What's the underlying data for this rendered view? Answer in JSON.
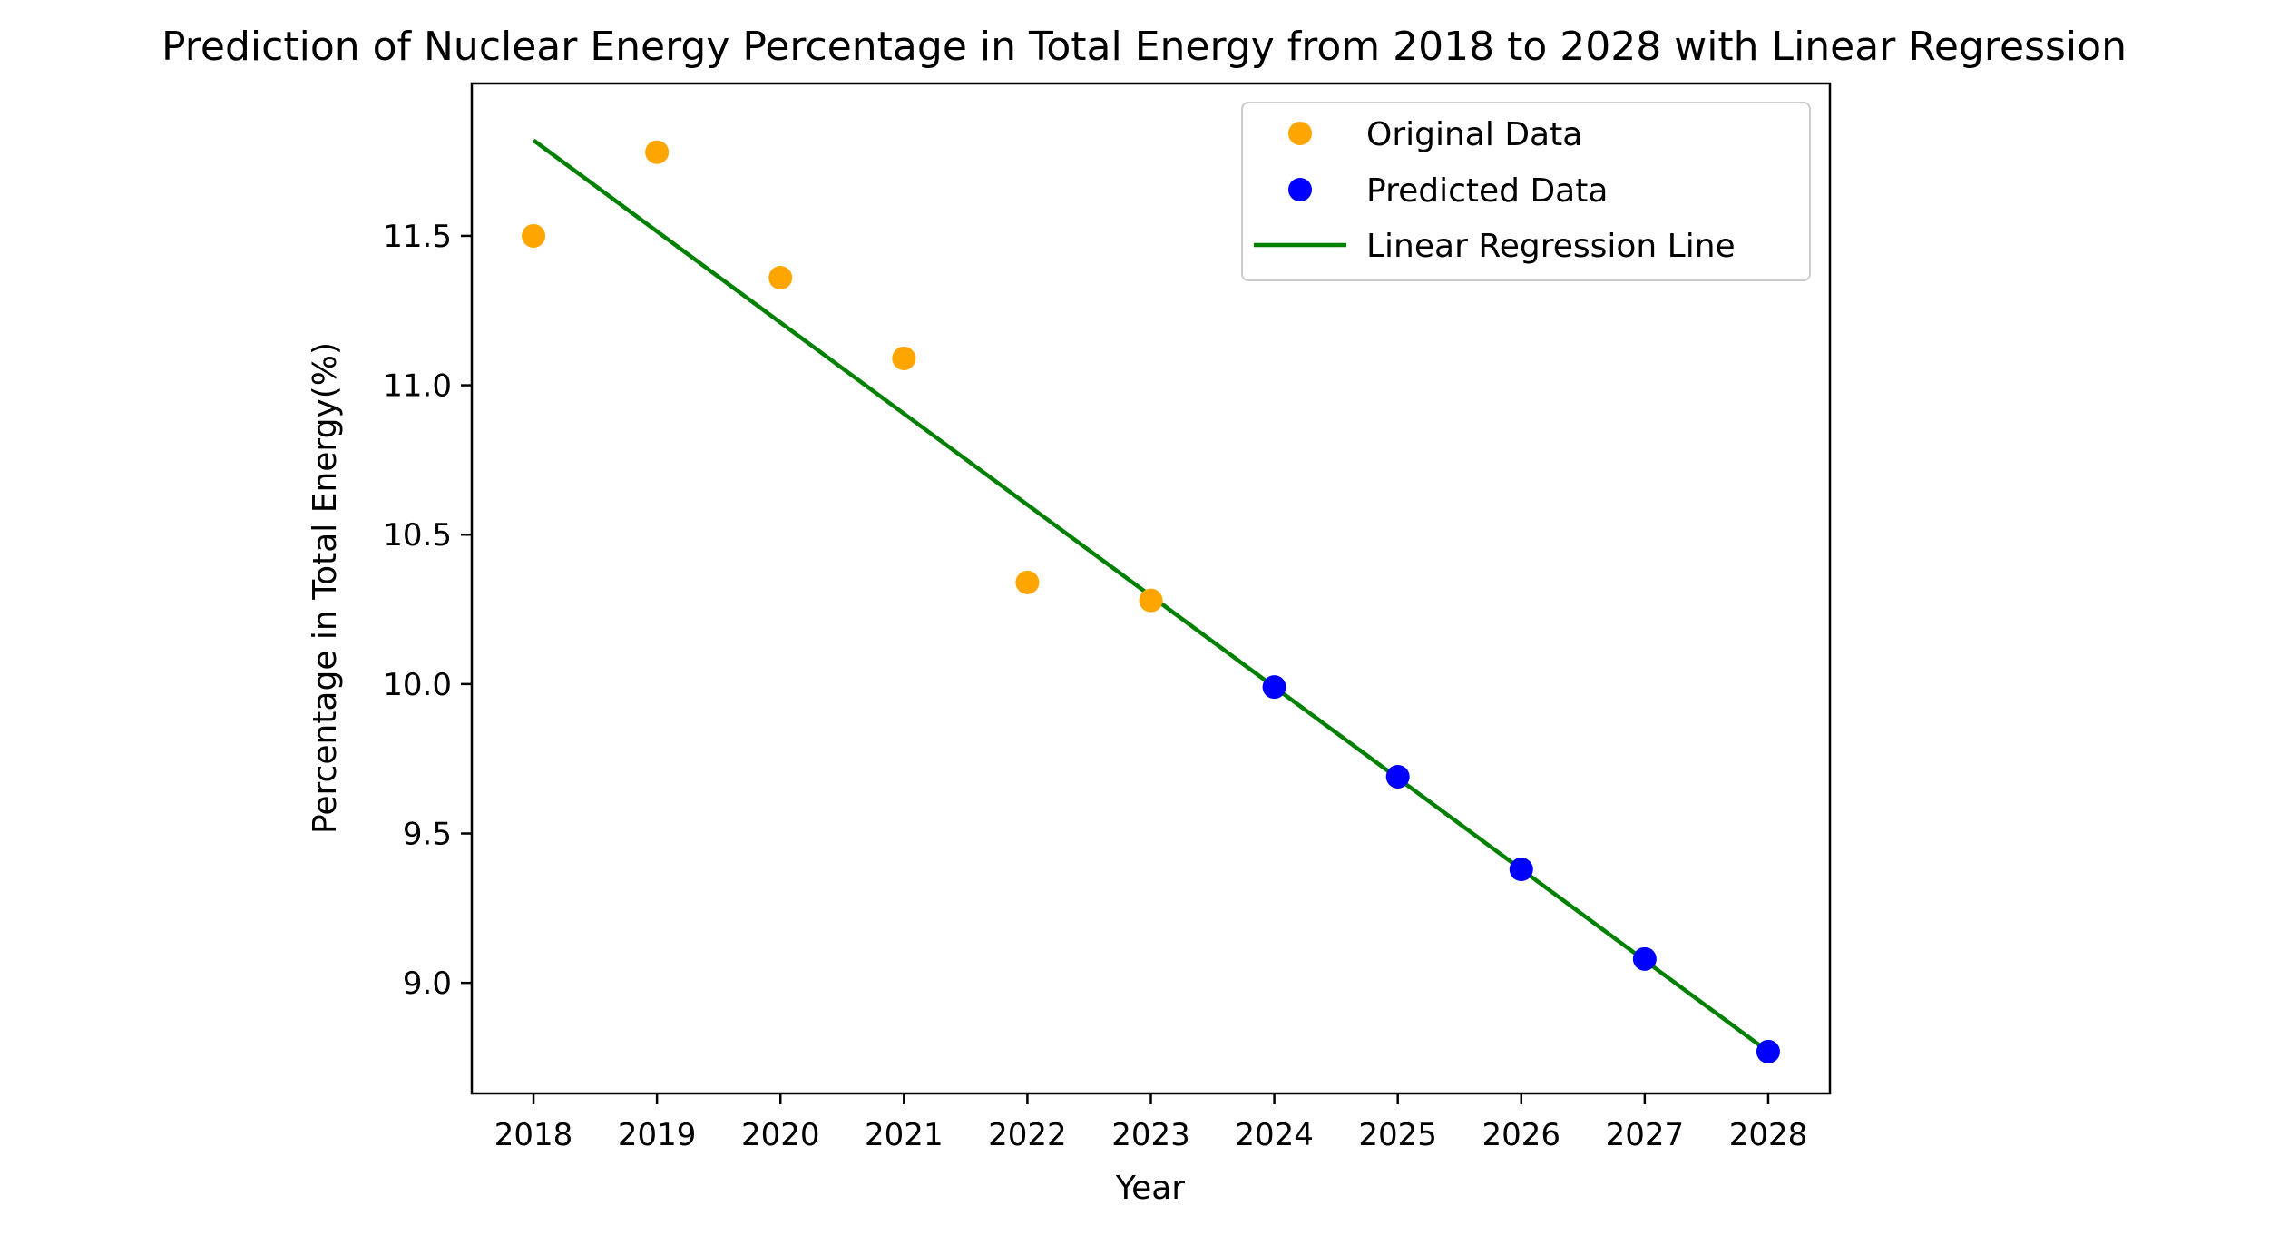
{
  "chart_data": {
    "type": "scatter",
    "title": "Prediction of Nuclear Energy Percentage in Total Energy from 2018 to 2028 with Linear Regression",
    "xlabel": "Year",
    "ylabel": "Percentage in Total Energy(%)",
    "xlim": [
      2017.5,
      2028.5
    ],
    "ylim": [
      8.63,
      12.01
    ],
    "xticks": [
      2018,
      2019,
      2020,
      2021,
      2022,
      2023,
      2024,
      2025,
      2026,
      2027,
      2028
    ],
    "yticks": [
      9.0,
      9.5,
      10.0,
      10.5,
      11.0,
      11.5
    ],
    "ytick_labels": [
      "9.0",
      "9.5",
      "10.0",
      "10.5",
      "11.0",
      "11.5"
    ],
    "grid": false,
    "legend_position": "top-right",
    "series": [
      {
        "name": "Original Data",
        "kind": "points",
        "color": "#ffa500",
        "x": [
          2018,
          2019,
          2020,
          2021,
          2022,
          2023
        ],
        "y": [
          11.5,
          11.78,
          11.36,
          11.09,
          10.34,
          10.28
        ]
      },
      {
        "name": "Predicted Data",
        "kind": "points",
        "color": "#0000ff",
        "x": [
          2024,
          2025,
          2026,
          2027,
          2028
        ],
        "y": [
          9.99,
          9.69,
          9.38,
          9.08,
          8.77
        ]
      },
      {
        "name": "Linear Regression Line",
        "kind": "line",
        "color": "#008000",
        "x": [
          2018,
          2028
        ],
        "y": [
          11.82,
          8.77
        ]
      }
    ]
  }
}
